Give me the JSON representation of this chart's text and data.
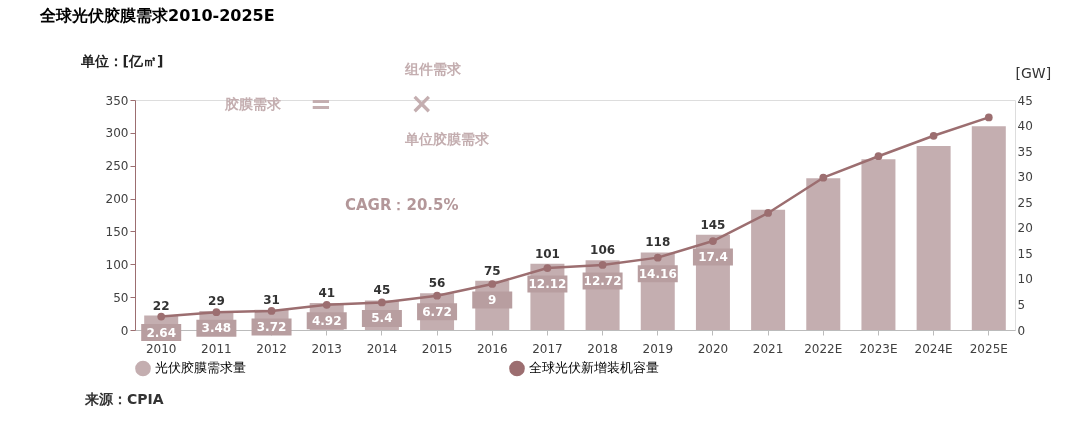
{
  "chart_data": {
    "type": "bar",
    "title": "全球光伏胶膜需求2010-2025E",
    "ylabel": "单位：[亿㎡]",
    "y2label": "[GW]",
    "categories": [
      "2010",
      "2011",
      "2012",
      "2013",
      "2014",
      "2015",
      "2016",
      "2017",
      "2018",
      "2019",
      "2020",
      "2021",
      "2022E",
      "2023E",
      "2024E",
      "2025E"
    ],
    "series": [
      {
        "name": "光伏胶膜需求量",
        "color": "#c4aeb0",
        "values": [
          22,
          29,
          31,
          41,
          45,
          56,
          75,
          101,
          106,
          118,
          145,
          183,
          231,
          260,
          280,
          310
        ],
        "value_labels": [
          "22",
          "29",
          "31",
          "41",
          "45",
          "56",
          "75",
          "101",
          "106",
          "118",
          "145",
          null,
          null,
          null,
          null,
          null
        ]
      },
      {
        "name": "全球光伏新增装机容量",
        "type": "line",
        "axis": "y2",
        "color": "#9c6e70",
        "values": [
          2.64,
          3.48,
          3.72,
          4.92,
          5.4,
          6.72,
          9,
          12.12,
          12.72,
          14.16,
          17.4,
          22.9,
          29.8,
          34,
          38,
          41.6
        ],
        "value_labels": [
          "2.64",
          "3.48",
          "3.72",
          "4.92",
          "5.4",
          "6.72",
          "9",
          "12.12",
          "12.72",
          "14.16",
          "17.4",
          null,
          null,
          null,
          null,
          null
        ]
      }
    ],
    "ylim": [
      0,
      350
    ],
    "yticks": [
      0,
      50,
      100,
      150,
      200,
      250,
      300,
      350
    ],
    "y2lim": [
      0,
      45
    ],
    "y2ticks": [
      0,
      5,
      10,
      15,
      20,
      25,
      30,
      35,
      40,
      45
    ],
    "marker": "circle",
    "legend": "bottom",
    "annotations": [
      "胶膜需求",
      "=",
      "×",
      "组件需求",
      "单位胶膜需求",
      "CAGR：20.5%",
      "来源：CPIA"
    ]
  }
}
